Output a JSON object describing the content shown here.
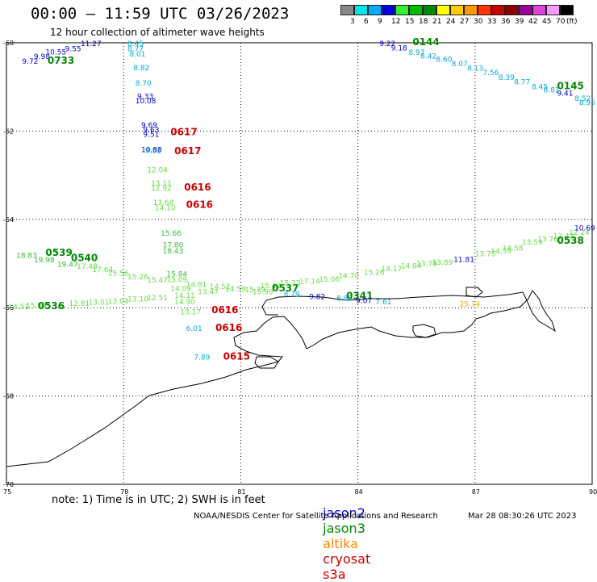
{
  "header": {
    "title": "00:00 – 11:59 UTC 03/26/2023",
    "subtitle": "12 hour collection of altimeter wave heights"
  },
  "colorbar": {
    "colors": [
      "#888888",
      "#00e5e5",
      "#00aaff",
      "#0000dd",
      "#33ee33",
      "#00bb00",
      "#008800",
      "#ffff00",
      "#ffcc00",
      "#ff9900",
      "#ff3300",
      "#cc0000",
      "#880000",
      "#990099",
      "#dd44dd",
      "#ff99ff",
      "#000000"
    ],
    "labels": [
      "3",
      "6",
      "9",
      "12",
      "15",
      "18",
      "21",
      "24",
      "27",
      "30",
      "33",
      "36",
      "39",
      "42",
      "45",
      "70",
      "(ft)"
    ]
  },
  "axes": {
    "x_ticks": [
      "75",
      "78",
      "81",
      "84",
      "87",
      "90"
    ],
    "y_ticks": [
      "-60",
      "-62",
      "-64",
      "-66",
      "-68",
      "-70"
    ]
  },
  "satellite_colors": {
    "jason2": "#0000cc",
    "jason3": "#008800",
    "altika": "#ff8800",
    "cryosat": "#cc0000",
    "s3a": "#cc0000"
  },
  "observations": [
    {
      "text": "11.27",
      "lon": 76.9,
      "lat": -60.0,
      "color": "#0000cc"
    },
    {
      "text": "9.55",
      "lon": 76.5,
      "lat": -60.12,
      "color": "#0000cc"
    },
    {
      "text": "10.55",
      "lon": 76.0,
      "lat": -60.19,
      "color": "#0000cc"
    },
    {
      "text": "9.98",
      "lon": 75.7,
      "lat": -60.29,
      "color": "#0000cc"
    },
    {
      "text": "9.72",
      "lon": 75.4,
      "lat": -60.4,
      "color": "#0000cc"
    },
    {
      "text": "0733",
      "lon": 76.05,
      "lat": -60.4,
      "color": "#008800",
      "time": true
    },
    {
      "text": "8.45",
      "lon": 78.1,
      "lat": -60.0,
      "color": "#00aadd"
    },
    {
      "text": "8.77",
      "lon": 78.1,
      "lat": -60.12,
      "color": "#00aadd"
    },
    {
      "text": "8.01",
      "lon": 78.15,
      "lat": -60.24,
      "color": "#00aadd"
    },
    {
      "text": "8.82",
      "lon": 78.25,
      "lat": -60.55,
      "color": "#00aadd"
    },
    {
      "text": "8.70",
      "lon": 78.3,
      "lat": -60.9,
      "color": "#00aadd"
    },
    {
      "text": "9.33",
      "lon": 78.35,
      "lat": -61.2,
      "color": "#0000cc"
    },
    {
      "text": "10.08",
      "lon": 78.3,
      "lat": -61.3,
      "color": "#0000cc"
    },
    {
      "text": "9.69",
      "lon": 78.45,
      "lat": -61.85,
      "color": "#0000cc"
    },
    {
      "text": "9.63",
      "lon": 78.5,
      "lat": -61.96,
      "color": "#0000cc"
    },
    {
      "text": "9.51",
      "lon": 78.5,
      "lat": -62.06,
      "color": "#0000cc"
    },
    {
      "text": "0617",
      "lon": 79.2,
      "lat": -62.02,
      "color": "#cc0000",
      "time": true
    },
    {
      "text": "10.88",
      "lon": 78.45,
      "lat": -62.4,
      "color": "#0000cc"
    },
    {
      "text": "9.52",
      "lon": 78.55,
      "lat": -62.42,
      "color": "#00aadd"
    },
    {
      "text": "0617",
      "lon": 79.3,
      "lat": -62.45,
      "color": "#cc0000",
      "time": true
    },
    {
      "text": "12.04",
      "lon": 78.6,
      "lat": -62.86,
      "color": "#66dd44"
    },
    {
      "text": "13.11",
      "lon": 78.7,
      "lat": -63.16,
      "color": "#66dd44"
    },
    {
      "text": "12.92",
      "lon": 78.7,
      "lat": -63.27,
      "color": "#66dd44"
    },
    {
      "text": "0616",
      "lon": 79.55,
      "lat": -63.27,
      "color": "#cc0000",
      "time": true
    },
    {
      "text": "13.68",
      "lon": 78.75,
      "lat": -63.6,
      "color": "#66dd44"
    },
    {
      "text": "14.10",
      "lon": 78.8,
      "lat": -63.72,
      "color": "#66dd44"
    },
    {
      "text": "0616",
      "lon": 79.6,
      "lat": -63.67,
      "color": "#cc0000",
      "time": true
    },
    {
      "text": "15.66",
      "lon": 78.95,
      "lat": -64.3,
      "color": "#33bb33"
    },
    {
      "text": "17.80",
      "lon": 79.0,
      "lat": -64.56,
      "color": "#33bb33"
    },
    {
      "text": "18.43",
      "lon": 79.0,
      "lat": -64.7,
      "color": "#33bb33"
    },
    {
      "text": "18.83",
      "lon": 75.25,
      "lat": -64.8,
      "color": "#33bb33"
    },
    {
      "text": "0539",
      "lon": 76.0,
      "lat": -64.75,
      "color": "#008800",
      "time": true
    },
    {
      "text": "19.98",
      "lon": 75.7,
      "lat": -64.9,
      "color": "#33bb33"
    },
    {
      "text": "19.47",
      "lon": 76.3,
      "lat": -65.0,
      "color": "#33bb33"
    },
    {
      "text": "0540",
      "lon": 76.65,
      "lat": -64.87,
      "color": "#008800",
      "time": true
    },
    {
      "text": "17.48",
      "lon": 76.8,
      "lat": -65.05,
      "color": "#66dd44"
    },
    {
      "text": "17.64",
      "lon": 77.2,
      "lat": -65.12,
      "color": "#66dd44"
    },
    {
      "text": "15.56",
      "lon": 77.6,
      "lat": -65.2,
      "color": "#66dd44"
    },
    {
      "text": "15.26",
      "lon": 78.1,
      "lat": -65.28,
      "color": "#66dd44"
    },
    {
      "text": "15.47",
      "lon": 78.6,
      "lat": -65.36,
      "color": "#66dd44"
    },
    {
      "text": "15.84",
      "lon": 79.1,
      "lat": -65.22,
      "color": "#33bb33"
    },
    {
      "text": "13.09",
      "lon": 79.1,
      "lat": -65.35,
      "color": "#66dd44"
    },
    {
      "text": "14.81",
      "lon": 79.6,
      "lat": -65.46,
      "color": "#66dd44"
    },
    {
      "text": "14.52",
      "lon": 80.2,
      "lat": -65.5,
      "color": "#66dd44"
    },
    {
      "text": "13.47",
      "lon": 79.9,
      "lat": -65.62,
      "color": "#66dd44"
    },
    {
      "text": "14.59",
      "lon": 80.6,
      "lat": -65.56,
      "color": "#66dd44"
    },
    {
      "text": "14.09",
      "lon": 79.2,
      "lat": -65.55,
      "color": "#66dd44"
    },
    {
      "text": "14.11",
      "lon": 79.3,
      "lat": -65.7,
      "color": "#66dd44"
    },
    {
      "text": "14.90",
      "lon": 79.3,
      "lat": -65.85,
      "color": "#66dd44"
    },
    {
      "text": "15.79",
      "lon": 81.1,
      "lat": -65.58,
      "color": "#66dd44"
    },
    {
      "text": "15.99",
      "lon": 81.3,
      "lat": -65.62,
      "color": "#66dd44"
    },
    {
      "text": "15.42",
      "lon": 81.5,
      "lat": -65.48,
      "color": "#66dd44"
    },
    {
      "text": "0537",
      "lon": 81.8,
      "lat": -65.56,
      "color": "#008800",
      "time": true
    },
    {
      "text": "15.33",
      "lon": 82.0,
      "lat": -65.42,
      "color": "#66dd44"
    },
    {
      "text": "17.14",
      "lon": 82.5,
      "lat": -65.38,
      "color": "#66dd44"
    },
    {
      "text": "15.06",
      "lon": 83.0,
      "lat": -65.34,
      "color": "#66dd44"
    },
    {
      "text": "14.70",
      "lon": 83.5,
      "lat": -65.26,
      "color": "#66dd44"
    },
    {
      "text": "15.26",
      "lon": 84.15,
      "lat": -65.18,
      "color": "#66dd44"
    },
    {
      "text": "14.17",
      "lon": 84.6,
      "lat": -65.1,
      "color": "#66dd44"
    },
    {
      "text": "14.84",
      "lon": 85.1,
      "lat": -65.04,
      "color": "#66dd44"
    },
    {
      "text": "13.79",
      "lon": 85.5,
      "lat": -64.98,
      "color": "#66dd44"
    },
    {
      "text": "13.89",
      "lon": 85.9,
      "lat": -64.95,
      "color": "#66dd44"
    },
    {
      "text": "11.81",
      "lon": 86.45,
      "lat": -64.89,
      "color": "#0000cc"
    },
    {
      "text": "13.75",
      "lon": 87.0,
      "lat": -64.76,
      "color": "#66dd44"
    },
    {
      "text": "14.59",
      "lon": 87.4,
      "lat": -64.7,
      "color": "#66dd44"
    },
    {
      "text": "14.58",
      "lon": 87.7,
      "lat": -64.63,
      "color": "#66dd44"
    },
    {
      "text": "13.59",
      "lon": 88.2,
      "lat": -64.5,
      "color": "#66dd44"
    },
    {
      "text": "13.76",
      "lon": 88.6,
      "lat": -64.43,
      "color": "#66dd44"
    },
    {
      "text": "13.42",
      "lon": 89.0,
      "lat": -64.36,
      "color": "#66dd44"
    },
    {
      "text": "12.24",
      "lon": 89.4,
      "lat": -64.28,
      "color": "#66dd44"
    },
    {
      "text": "0538",
      "lon": 89.1,
      "lat": -64.48,
      "color": "#008800",
      "time": true
    },
    {
      "text": "10.69",
      "lon": 89.75,
      "lat": -64.18,
      "color": "#0000cc"
    },
    {
      "text": "9.82",
      "lon": 82.75,
      "lat": -65.73,
      "color": "#0000cc"
    },
    {
      "text": "8.79",
      "lon": 82.1,
      "lat": -65.68,
      "color": "#00aadd"
    },
    {
      "text": "8.80",
      "lon": 83.45,
      "lat": -65.77,
      "color": "#00aadd"
    },
    {
      "text": "0341",
      "lon": 83.7,
      "lat": -65.73,
      "color": "#008800",
      "time": true
    },
    {
      "text": "9.07",
      "lon": 83.95,
      "lat": -65.82,
      "color": "#0000cc"
    },
    {
      "text": "7.61",
      "lon": 84.45,
      "lat": -65.85,
      "color": "#00aadd"
    },
    {
      "text": "14.51",
      "lon": 75.05,
      "lat": -65.96,
      "color": "#66dd44"
    },
    {
      "text": "15.64",
      "lon": 75.5,
      "lat": -65.93,
      "color": "#66dd44"
    },
    {
      "text": "0536",
      "lon": 75.8,
      "lat": -65.96,
      "color": "#008800",
      "time": true
    },
    {
      "text": "12.81",
      "lon": 76.6,
      "lat": -65.89,
      "color": "#66dd44"
    },
    {
      "text": "13.01",
      "lon": 77.1,
      "lat": -65.86,
      "color": "#66dd44"
    },
    {
      "text": "13.04",
      "lon": 77.6,
      "lat": -65.83,
      "color": "#66dd44"
    },
    {
      "text": "13.10",
      "lon": 78.1,
      "lat": -65.79,
      "color": "#66dd44"
    },
    {
      "text": "12.51",
      "lon": 78.6,
      "lat": -65.76,
      "color": "#66dd44"
    },
    {
      "text": "25.14",
      "lon": 86.6,
      "lat": -65.9,
      "color": "#ffaa00"
    },
    {
      "text": "13.17",
      "lon": 79.45,
      "lat": -66.08,
      "color": "#66dd44"
    },
    {
      "text": "0616",
      "lon": 80.25,
      "lat": -66.05,
      "color": "#cc0000",
      "time": true
    },
    {
      "text": "6.01",
      "lon": 79.6,
      "lat": -66.45,
      "color": "#00aadd"
    },
    {
      "text": "0616",
      "lon": 80.35,
      "lat": -66.45,
      "color": "#cc0000",
      "time": true
    },
    {
      "text": "7.89",
      "lon": 79.8,
      "lat": -67.1,
      "color": "#00aadd"
    },
    {
      "text": "0615",
      "lon": 80.55,
      "lat": -67.1,
      "color": "#cc0000",
      "time": true
    },
    {
      "text": "9.22",
      "lon": 84.55,
      "lat": -60.0,
      "color": "#0000cc"
    },
    {
      "text": "0144",
      "lon": 85.4,
      "lat": -59.98,
      "color": "#008800",
      "time": true
    },
    {
      "text": "9.18",
      "lon": 84.85,
      "lat": -60.1,
      "color": "#0000cc"
    },
    {
      "text": "8.97",
      "lon": 85.3,
      "lat": -60.2,
      "color": "#00aadd"
    },
    {
      "text": "8.42",
      "lon": 85.6,
      "lat": -60.28,
      "color": "#00aadd"
    },
    {
      "text": "8.60",
      "lon": 86.0,
      "lat": -60.36,
      "color": "#00aadd"
    },
    {
      "text": "8.07",
      "lon": 86.4,
      "lat": -60.46,
      "color": "#00aadd"
    },
    {
      "text": "8.13",
      "lon": 86.8,
      "lat": -60.56,
      "color": "#00aadd"
    },
    {
      "text": "7.56",
      "lon": 87.2,
      "lat": -60.66,
      "color": "#00aadd"
    },
    {
      "text": "8.39",
      "lon": 87.6,
      "lat": -60.77,
      "color": "#00aadd"
    },
    {
      "text": "8.77",
      "lon": 88.0,
      "lat": -60.87,
      "color": "#00aadd"
    },
    {
      "text": "8.45",
      "lon": 88.45,
      "lat": -60.98,
      "color": "#00aadd"
    },
    {
      "text": "8.81",
      "lon": 88.75,
      "lat": -61.05,
      "color": "#00aadd"
    },
    {
      "text": "0145",
      "lon": 89.1,
      "lat": -60.98,
      "color": "#008800",
      "time": true
    },
    {
      "text": "9.41",
      "lon": 89.1,
      "lat": -61.12,
      "color": "#0000cc"
    },
    {
      "text": "8.52",
      "lon": 89.55,
      "lat": -61.24,
      "color": "#00aadd"
    },
    {
      "text": "8.95",
      "lon": 89.85,
      "lat": -61.33,
      "color": "#00aadd"
    }
  ],
  "footer": {
    "note": "note: 1) Time is in UTC; 2) SWH is in feet",
    "legend": [
      "jason2",
      "jason3",
      "altika",
      "cryosat",
      "s3a"
    ],
    "credit": "NOAA/NESDIS Center for Satellite Applications and Research",
    "stamp": "Mar 28 08:30:26 UTC 2023"
  }
}
